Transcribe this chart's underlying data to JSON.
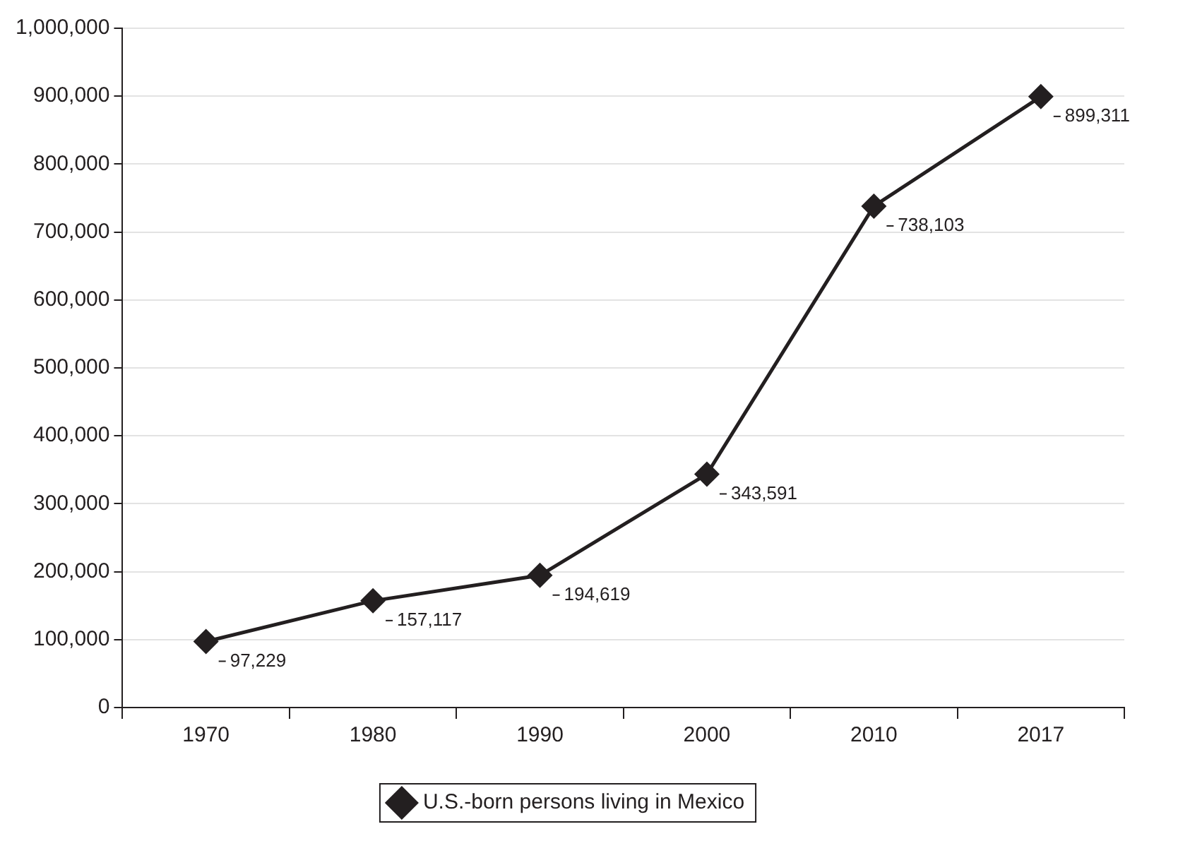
{
  "chart_data": {
    "type": "line",
    "categories": [
      "1970",
      "1980",
      "1990",
      "2000",
      "2010",
      "2017"
    ],
    "series": [
      {
        "name": "U.S.-born persons living in Mexico",
        "color": "#231f20",
        "values": [
          97229,
          157117,
          194619,
          343591,
          738103,
          899311
        ],
        "value_labels": [
          "97,229",
          "157,117",
          "194,619",
          "343,591",
          "738,103",
          "899,311"
        ]
      }
    ],
    "ylim": [
      0,
      1000000
    ],
    "yticks": [
      0,
      {
        "value": 100000,
        "label": "100,000"
      },
      {
        "value": 200000,
        "label": "200,000"
      },
      {
        "value": 300000,
        "label": "300,000"
      },
      {
        "value": 400000,
        "label": "400,000"
      },
      {
        "value": 500000,
        "label": "500,000"
      },
      {
        "value": 600000,
        "label": "600,000"
      },
      {
        "value": 700000,
        "label": "700,000"
      },
      {
        "value": 800000,
        "label": "800,000"
      },
      {
        "value": 900000,
        "label": "900,000"
      },
      {
        "value": 1000000,
        "label": "1,000,000"
      }
    ],
    "grid": "y",
    "legend": "bottom",
    "marker": "diamond",
    "line_style": "solid"
  }
}
